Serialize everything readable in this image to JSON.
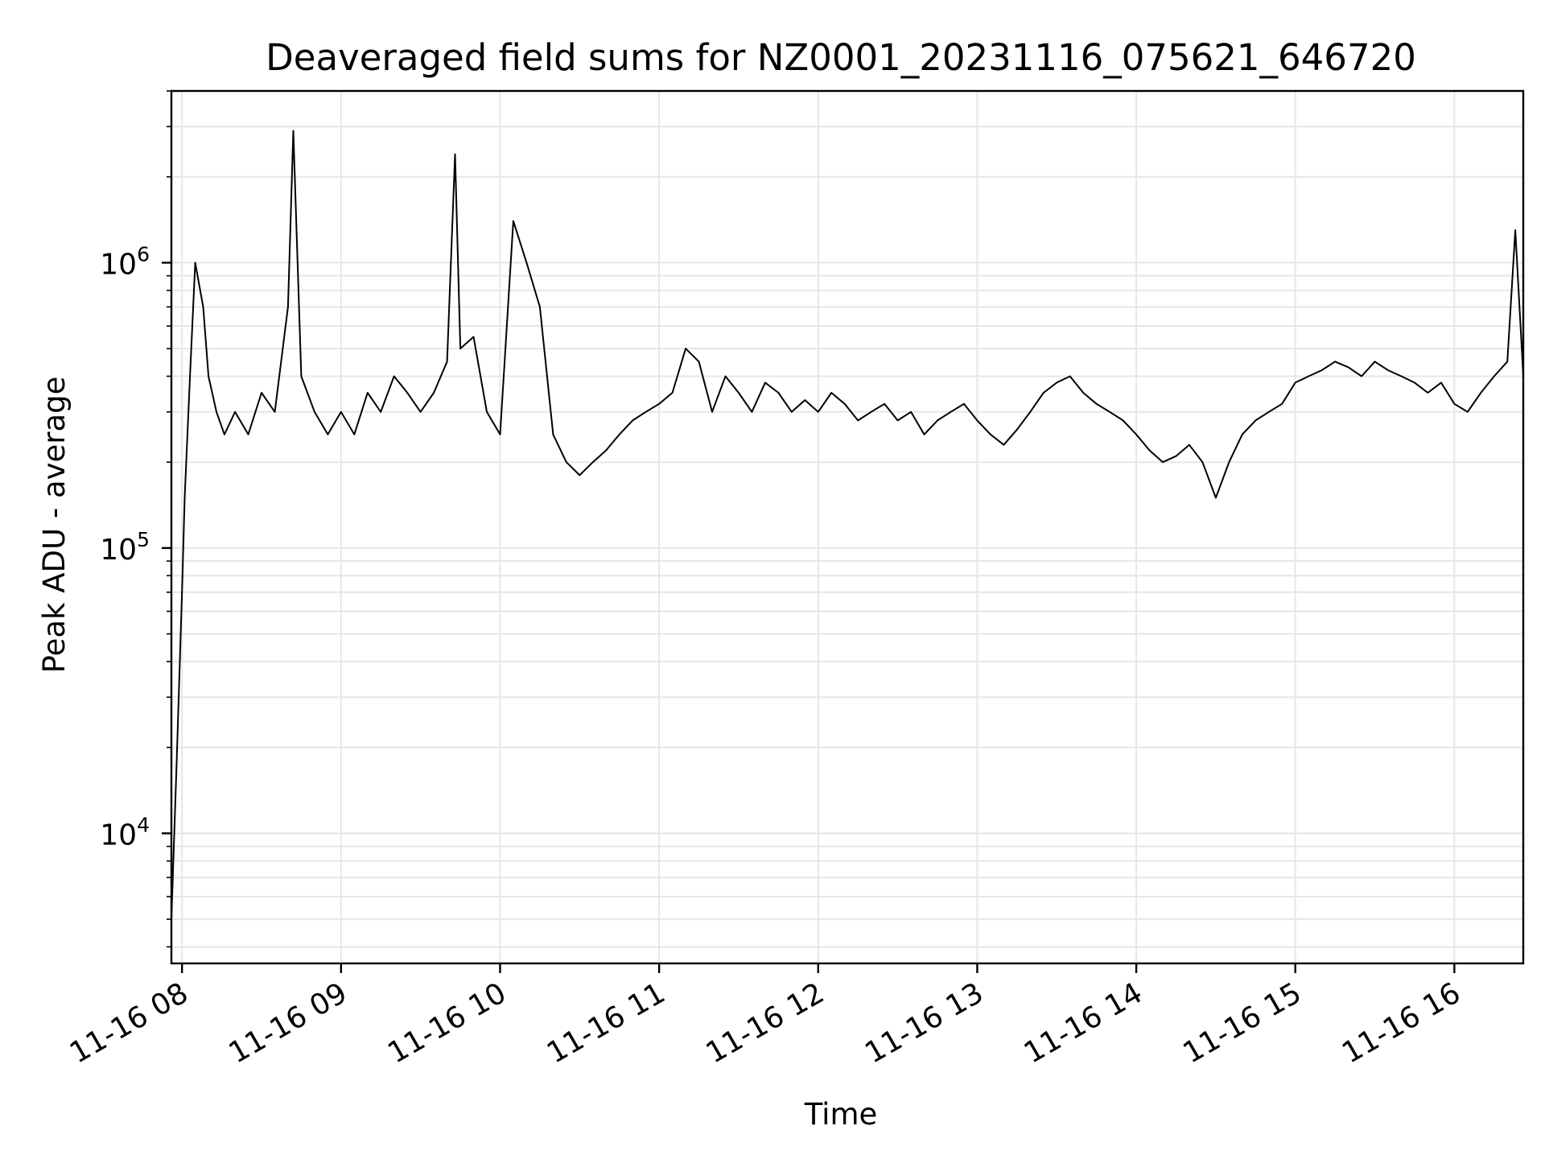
{
  "chart_data": {
    "type": "line",
    "title": "Deaveraged field sums for NZ0001_20231116_075621_646720",
    "xlabel": "Time",
    "ylabel": "Peak ADU - average",
    "y_scale": "log",
    "grid": true,
    "xlim": [
      "2023-11-16 07:56",
      "2023-11-16 16:26"
    ],
    "ylim": [
      3500,
      4000000
    ],
    "x_ticks": [
      "11-16 08",
      "11-16 09",
      "11-16 10",
      "11-16 11",
      "11-16 12",
      "11-16 13",
      "11-16 14",
      "11-16 15",
      "11-16 16"
    ],
    "y_ticks": [
      {
        "value": 10000,
        "base": "10",
        "exp": "4"
      },
      {
        "value": 100000,
        "base": "10",
        "exp": "5"
      },
      {
        "value": 1000000,
        "base": "10",
        "exp": "6"
      }
    ],
    "line_color": "#000000",
    "grid_color": "#e6e6e6",
    "series": [
      {
        "x": [
          "07:56",
          "07:58",
          "08:00",
          "08:01",
          "08:03",
          "08:05",
          "08:08",
          "08:10",
          "08:13",
          "08:16",
          "08:20",
          "08:25",
          "08:30",
          "08:35",
          "08:40",
          "08:42",
          "08:45",
          "08:50",
          "08:55",
          "09:00",
          "09:05",
          "09:10",
          "09:15",
          "09:20",
          "09:25",
          "09:30",
          "09:35",
          "09:40",
          "09:43",
          "09:45",
          "09:50",
          "09:55",
          "10:00",
          "10:05",
          "10:10",
          "10:15",
          "10:20",
          "10:25",
          "10:30",
          "10:35",
          "10:40",
          "10:45",
          "10:50",
          "10:55",
          "11:00",
          "11:05",
          "11:10",
          "11:15",
          "11:20",
          "11:25",
          "11:30",
          "11:35",
          "11:40",
          "11:45",
          "11:50",
          "11:55",
          "12:00",
          "12:05",
          "12:10",
          "12:15",
          "12:20",
          "12:25",
          "12:30",
          "12:35",
          "12:40",
          "12:45",
          "12:50",
          "12:55",
          "13:00",
          "13:05",
          "13:10",
          "13:15",
          "13:20",
          "13:25",
          "13:30",
          "13:35",
          "13:40",
          "13:45",
          "13:50",
          "13:55",
          "14:00",
          "14:05",
          "14:10",
          "14:15",
          "14:20",
          "14:25",
          "14:30",
          "14:35",
          "14:40",
          "14:45",
          "14:50",
          "14:55",
          "15:00",
          "15:05",
          "15:10",
          "15:15",
          "15:20",
          "15:25",
          "15:30",
          "15:35",
          "15:40",
          "15:45",
          "15:50",
          "15:55",
          "16:00",
          "16:05",
          "16:10",
          "16:15",
          "16:20",
          "16:23",
          "16:26"
        ],
        "y": [
          5000,
          18000,
          70000,
          150000,
          400000,
          1000000,
          700000,
          400000,
          300000,
          250000,
          300000,
          250000,
          350000,
          300000,
          700000,
          2900000,
          400000,
          300000,
          250000,
          300000,
          250000,
          350000,
          300000,
          400000,
          350000,
          300000,
          350000,
          450000,
          2400000,
          500000,
          550000,
          300000,
          250000,
          1400000,
          1000000,
          700000,
          250000,
          200000,
          180000,
          200000,
          220000,
          250000,
          280000,
          300000,
          320000,
          350000,
          500000,
          450000,
          300000,
          400000,
          350000,
          300000,
          380000,
          350000,
          300000,
          330000,
          300000,
          350000,
          320000,
          280000,
          300000,
          320000,
          280000,
          300000,
          250000,
          280000,
          300000,
          320000,
          280000,
          250000,
          230000,
          260000,
          300000,
          350000,
          380000,
          400000,
          350000,
          320000,
          300000,
          280000,
          250000,
          220000,
          200000,
          210000,
          230000,
          200000,
          150000,
          200000,
          250000,
          280000,
          300000,
          320000,
          380000,
          400000,
          420000,
          450000,
          430000,
          400000,
          450000,
          420000,
          400000,
          380000,
          350000,
          380000,
          320000,
          300000,
          350000,
          400000,
          450000,
          1300000,
          400000
        ]
      }
    ]
  }
}
